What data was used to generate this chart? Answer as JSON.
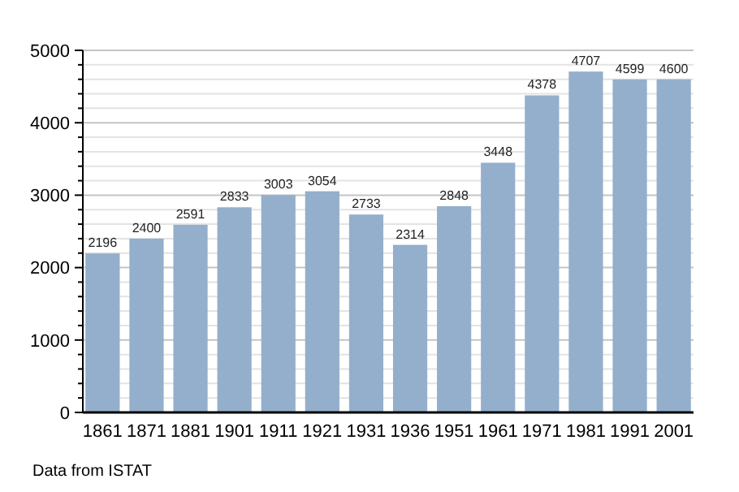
{
  "chart_data": {
    "type": "bar",
    "categories": [
      "1861",
      "1871",
      "1881",
      "1901",
      "1911",
      "1921",
      "1931",
      "1936",
      "1951",
      "1961",
      "1971",
      "1981",
      "1991",
      "2001"
    ],
    "values": [
      2196,
      2400,
      2591,
      2833,
      3003,
      3054,
      2733,
      2314,
      2848,
      3448,
      4378,
      4707,
      4599,
      4600
    ],
    "color": "#94afcb",
    "data_labels": true,
    "grid": "y",
    "ylim": [
      0,
      5000
    ],
    "yticks": [
      0,
      {
        "value": 200,
        "label": null
      },
      {
        "value": 400,
        "label": null
      },
      {
        "value": 600,
        "label": null
      },
      {
        "value": 800,
        "label": null
      },
      1000,
      {
        "value": 1200,
        "label": null
      },
      {
        "value": 1400,
        "label": null
      },
      {
        "value": 1600,
        "label": null
      },
      {
        "value": 1800,
        "label": null
      },
      2000,
      {
        "value": 2200,
        "label": null
      },
      {
        "value": 2400,
        "label": null
      },
      {
        "value": 2600,
        "label": null
      },
      {
        "value": 2800,
        "label": null
      },
      3000,
      {
        "value": 3200,
        "label": null
      },
      {
        "value": 3400,
        "label": null
      },
      {
        "value": 3600,
        "label": null
      },
      {
        "value": 3800,
        "label": null
      },
      4000,
      {
        "value": 4200,
        "label": null
      },
      {
        "value": 4400,
        "label": null
      },
      {
        "value": 4600,
        "label": null
      },
      {
        "value": 4800,
        "label": null
      },
      5000
    ],
    "annotations": [
      "Data from ISTAT"
    ]
  }
}
